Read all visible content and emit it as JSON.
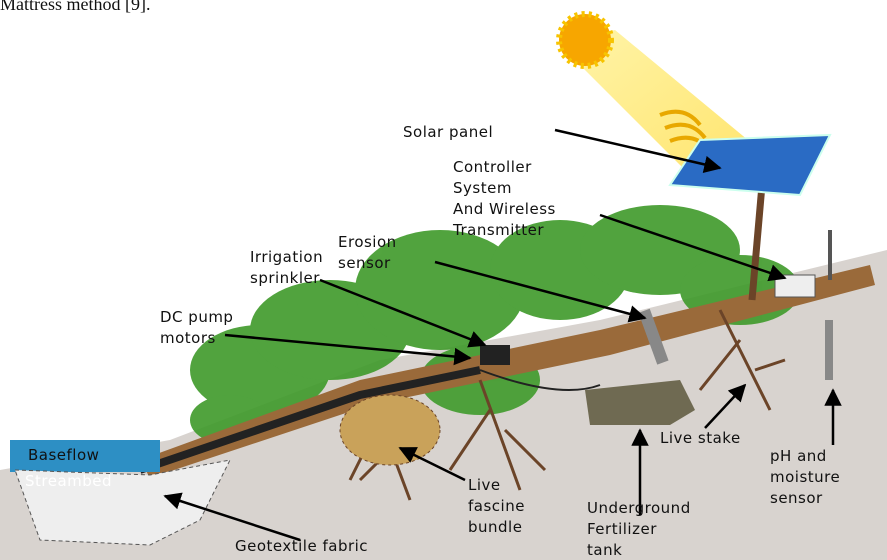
{
  "header": {
    "caption": "Mattress method [9]."
  },
  "labels": [
    {
      "lines": [
        "Solar panel"
      ]
    },
    {
      "lines": [
        "Controller",
        "System",
        "And Wireless",
        "Transmitter"
      ]
    },
    {
      "lines": [
        "Erosion",
        "sensor"
      ]
    },
    {
      "lines": [
        "Irrigation",
        "sprinkler"
      ]
    },
    {
      "lines": [
        "DC pump",
        "motors"
      ]
    },
    {
      "lines": [
        "Baseflow"
      ]
    },
    {
      "lines": [
        "Streambed"
      ]
    },
    {
      "lines": [
        "Geotextile fabric"
      ]
    },
    {
      "lines": [
        "Live",
        "fascine",
        "bundle"
      ]
    },
    {
      "lines": [
        "Underground",
        "Fertilizer",
        "tank"
      ]
    },
    {
      "lines": [
        "Live stake"
      ]
    },
    {
      "lines": [
        "pH and",
        "moisture",
        "sensor"
      ]
    }
  ]
}
